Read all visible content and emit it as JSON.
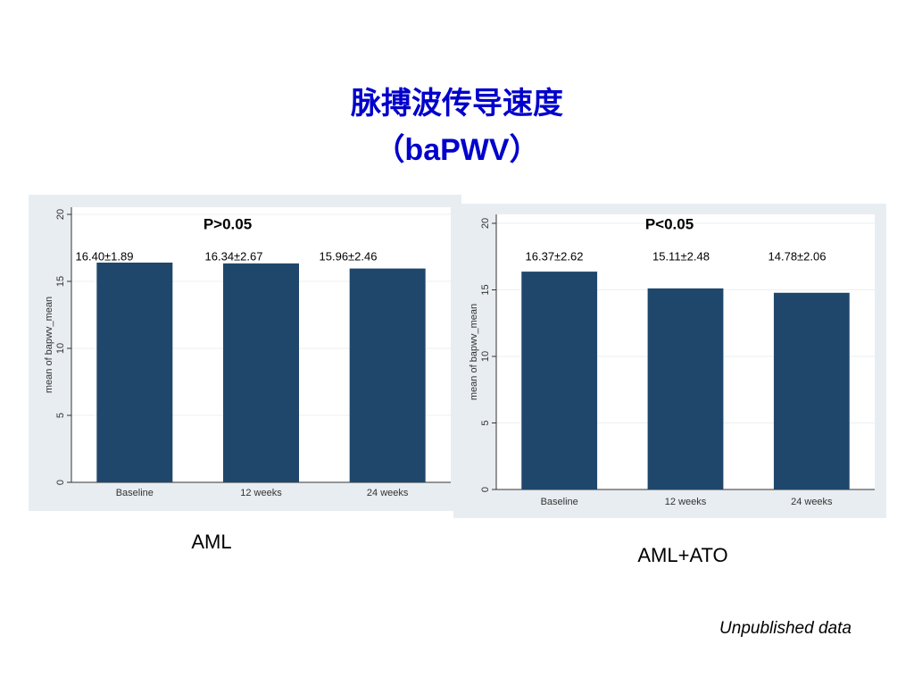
{
  "title": "脉搏波传导速度",
  "subtitle": "（baPWV）",
  "note": "Unpublished data",
  "chart_data": [
    {
      "type": "bar",
      "caption": "AML",
      "annotation": "P>0.05",
      "y_label": "mean of bapwv_mean",
      "categories": [
        "Baseline",
        "12 weeks",
        "24 weeks"
      ],
      "values": [
        16.4,
        16.34,
        15.96
      ],
      "value_labels": [
        "16.40±1.89",
        "16.34±2.67",
        "15.96±2.46"
      ],
      "color": "#1f476b",
      "ylim": [
        0,
        20
      ],
      "yticks": [
        0,
        5,
        10,
        15,
        20
      ],
      "grid": true
    },
    {
      "type": "bar",
      "caption": "AML+ATO",
      "annotation": "P<0.05",
      "y_label": "mean of bapwv_mean",
      "categories": [
        "Baseline",
        "12 weeks",
        "24 weeks"
      ],
      "values": [
        16.37,
        15.11,
        14.78
      ],
      "value_labels": [
        "16.37±2.62",
        "15.11±2.48",
        "14.78±2.06"
      ],
      "color": "#1f476b",
      "ylim": [
        0,
        20
      ],
      "yticks": [
        0,
        5,
        10,
        15,
        20
      ],
      "grid": true
    }
  ]
}
